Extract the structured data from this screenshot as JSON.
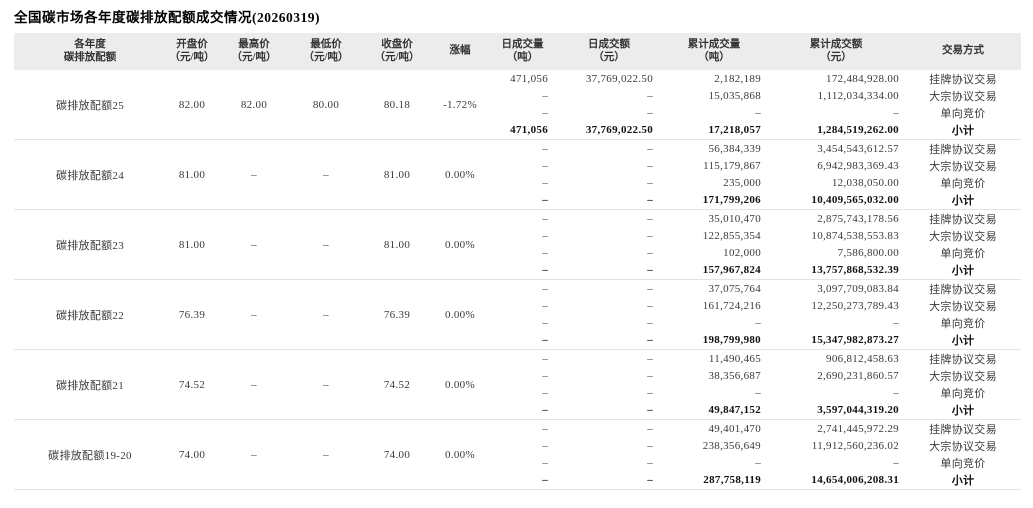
{
  "page_title": "全国碳市场各年度碳排放配额成交情况(20260319)",
  "colors": {
    "header_bg": "#ececec",
    "row_border": "#e3e3e3",
    "body_text": "#3a3a3a",
    "subtotal_text": "#111111"
  },
  "chart_data": {
    "type": "table",
    "title": "全国碳市场各年度碳排放配额成交情况(20260319)",
    "columns": [
      {
        "key": "allowance",
        "line1": "各年度",
        "line2": "碳排放配额"
      },
      {
        "key": "open",
        "line1": "开盘价",
        "line2": "（元/吨）"
      },
      {
        "key": "high",
        "line1": "最高价",
        "line2": "（元/吨）"
      },
      {
        "key": "low",
        "line1": "最低价",
        "line2": "（元/吨）"
      },
      {
        "key": "close",
        "line1": "收盘价",
        "line2": "（元/吨）"
      },
      {
        "key": "change",
        "line1": "涨幅",
        "line2": ""
      },
      {
        "key": "daily_volume",
        "line1": "日成交量",
        "line2": "（吨）"
      },
      {
        "key": "daily_turnover",
        "line1": "日成交额",
        "line2": "（元）"
      },
      {
        "key": "cum_volume",
        "line1": "累计成交量",
        "line2": "（吨）"
      },
      {
        "key": "cum_turnover",
        "line1": "累计成交额",
        "line2": "（元）"
      },
      {
        "key": "method",
        "line1": "交易方式",
        "line2": ""
      }
    ],
    "blocks": [
      {
        "name": "碳排放配额25",
        "open": "82.00",
        "high": "82.00",
        "low": "80.00",
        "close": "80.18",
        "change": "-1.72%",
        "rows": [
          {
            "daily_volume": "471,056",
            "daily_turnover": "37,769,022.50",
            "cum_volume": "2,182,189",
            "cum_turnover": "172,484,928.00",
            "method": "挂牌协议交易"
          },
          {
            "daily_volume": "–",
            "daily_turnover": "–",
            "cum_volume": "15,035,868",
            "cum_turnover": "1,112,034,334.00",
            "method": "大宗协议交易"
          },
          {
            "daily_volume": "–",
            "daily_turnover": "–",
            "cum_volume": "–",
            "cum_turnover": "–",
            "method": "单向竞价"
          },
          {
            "daily_volume": "471,056",
            "daily_turnover": "37,769,022.50",
            "cum_volume": "17,218,057",
            "cum_turnover": "1,284,519,262.00",
            "method": "小计"
          }
        ]
      },
      {
        "name": "碳排放配额24",
        "open": "81.00",
        "high": "–",
        "low": "–",
        "close": "81.00",
        "change": "0.00%",
        "rows": [
          {
            "daily_volume": "–",
            "daily_turnover": "–",
            "cum_volume": "56,384,339",
            "cum_turnover": "3,454,543,612.57",
            "method": "挂牌协议交易"
          },
          {
            "daily_volume": "–",
            "daily_turnover": "–",
            "cum_volume": "115,179,867",
            "cum_turnover": "6,942,983,369.43",
            "method": "大宗协议交易"
          },
          {
            "daily_volume": "–",
            "daily_turnover": "–",
            "cum_volume": "235,000",
            "cum_turnover": "12,038,050.00",
            "method": "单向竞价"
          },
          {
            "daily_volume": "–",
            "daily_turnover": "–",
            "cum_volume": "171,799,206",
            "cum_turnover": "10,409,565,032.00",
            "method": "小计"
          }
        ]
      },
      {
        "name": "碳排放配额23",
        "open": "81.00",
        "high": "–",
        "low": "–",
        "close": "81.00",
        "change": "0.00%",
        "rows": [
          {
            "daily_volume": "–",
            "daily_turnover": "–",
            "cum_volume": "35,010,470",
            "cum_turnover": "2,875,743,178.56",
            "method": "挂牌协议交易"
          },
          {
            "daily_volume": "–",
            "daily_turnover": "–",
            "cum_volume": "122,855,354",
            "cum_turnover": "10,874,538,553.83",
            "method": "大宗协议交易"
          },
          {
            "daily_volume": "–",
            "daily_turnover": "–",
            "cum_volume": "102,000",
            "cum_turnover": "7,586,800.00",
            "method": "单向竞价"
          },
          {
            "daily_volume": "–",
            "daily_turnover": "–",
            "cum_volume": "157,967,824",
            "cum_turnover": "13,757,868,532.39",
            "method": "小计"
          }
        ]
      },
      {
        "name": "碳排放配额22",
        "open": "76.39",
        "high": "–",
        "low": "–",
        "close": "76.39",
        "change": "0.00%",
        "rows": [
          {
            "daily_volume": "–",
            "daily_turnover": "–",
            "cum_volume": "37,075,764",
            "cum_turnover": "3,097,709,083.84",
            "method": "挂牌协议交易"
          },
          {
            "daily_volume": "–",
            "daily_turnover": "–",
            "cum_volume": "161,724,216",
            "cum_turnover": "12,250,273,789.43",
            "method": "大宗协议交易"
          },
          {
            "daily_volume": "–",
            "daily_turnover": "–",
            "cum_volume": "–",
            "cum_turnover": "–",
            "method": "单向竞价"
          },
          {
            "daily_volume": "–",
            "daily_turnover": "–",
            "cum_volume": "198,799,980",
            "cum_turnover": "15,347,982,873.27",
            "method": "小计"
          }
        ]
      },
      {
        "name": "碳排放配额21",
        "open": "74.52",
        "high": "–",
        "low": "–",
        "close": "74.52",
        "change": "0.00%",
        "rows": [
          {
            "daily_volume": "–",
            "daily_turnover": "–",
            "cum_volume": "11,490,465",
            "cum_turnover": "906,812,458.63",
            "method": "挂牌协议交易"
          },
          {
            "daily_volume": "–",
            "daily_turnover": "–",
            "cum_volume": "38,356,687",
            "cum_turnover": "2,690,231,860.57",
            "method": "大宗协议交易"
          },
          {
            "daily_volume": "–",
            "daily_turnover": "–",
            "cum_volume": "–",
            "cum_turnover": "–",
            "method": "单向竞价"
          },
          {
            "daily_volume": "–",
            "daily_turnover": "–",
            "cum_volume": "49,847,152",
            "cum_turnover": "3,597,044,319.20",
            "method": "小计"
          }
        ]
      },
      {
        "name": "碳排放配额19-20",
        "open": "74.00",
        "high": "–",
        "low": "–",
        "close": "74.00",
        "change": "0.00%",
        "rows": [
          {
            "daily_volume": "–",
            "daily_turnover": "–",
            "cum_volume": "49,401,470",
            "cum_turnover": "2,741,445,972.29",
            "method": "挂牌协议交易"
          },
          {
            "daily_volume": "–",
            "daily_turnover": "–",
            "cum_volume": "238,356,649",
            "cum_turnover": "11,912,560,236.02",
            "method": "大宗协议交易"
          },
          {
            "daily_volume": "–",
            "daily_turnover": "–",
            "cum_volume": "–",
            "cum_turnover": "–",
            "method": "单向竞价"
          },
          {
            "daily_volume": "–",
            "daily_turnover": "–",
            "cum_volume": "287,758,119",
            "cum_turnover": "14,654,006,208.31",
            "method": "小计"
          }
        ]
      }
    ]
  }
}
